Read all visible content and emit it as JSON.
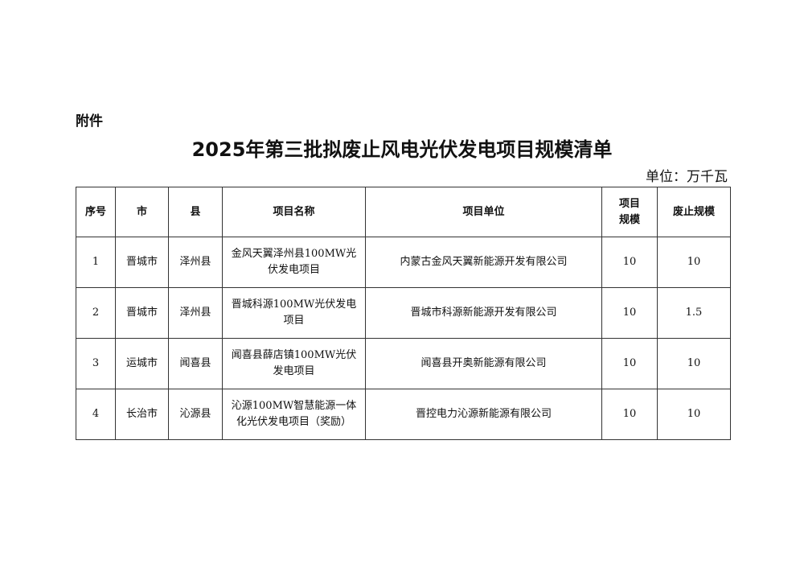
{
  "attachment_label": "附件",
  "title": "2025年第三批拟废止风电光伏发电项目规模清单",
  "unit": "单位：万千瓦",
  "table": {
    "headers": [
      "序号",
      "市",
      "县",
      "项目名称",
      "项目单位",
      "项目规模",
      "废止规模"
    ],
    "rows": [
      [
        "1",
        "晋城市",
        "泽州县",
        "金风天翼泽州县100MW光伏发电项目",
        "内蒙古金风天翼新能源开发有限公司",
        "10",
        "10"
      ],
      [
        "2",
        "晋城市",
        "泽州县",
        "晋城科源100MW光伏发电项目",
        "晋城市科源新能源开发有限公司",
        "10",
        "1.5"
      ],
      [
        "3",
        "运城市",
        "闻喜县",
        "闻喜县薛店镇100MW光伏发电项目",
        "闻喜县开奥新能源有限公司",
        "10",
        "10"
      ],
      [
        "4",
        "长治市",
        "沁源县",
        "沁源100MW智慧能源一体化光伏发电项目（奖励）",
        "晋控电力沁源新能源有限公司",
        "10",
        "10"
      ]
    ]
  }
}
